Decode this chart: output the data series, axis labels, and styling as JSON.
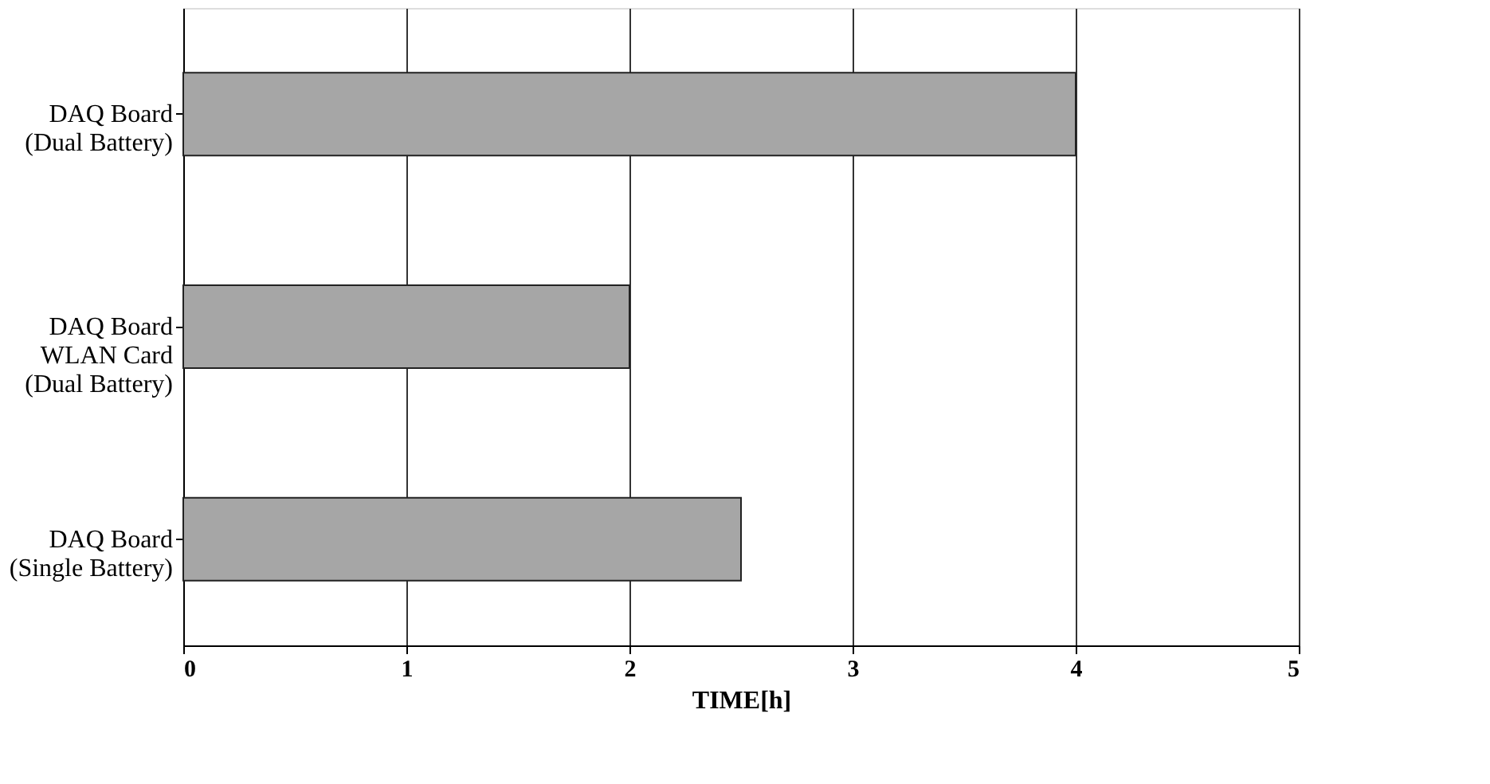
{
  "chart_data": {
    "type": "bar",
    "orientation": "horizontal",
    "categories": [
      "DAQ Board\n(Dual Battery)",
      "DAQ Board\nWLAN Card\n(Dual Battery)",
      "DAQ Board\n(Single Battery)"
    ],
    "values": [
      4,
      2,
      2.5
    ],
    "color": "#a6a6a6",
    "xlabel": "TIME[h]",
    "xlim": [
      0,
      5
    ],
    "xticks": [
      0,
      1,
      2,
      3,
      4,
      5
    ],
    "grid": "x"
  }
}
